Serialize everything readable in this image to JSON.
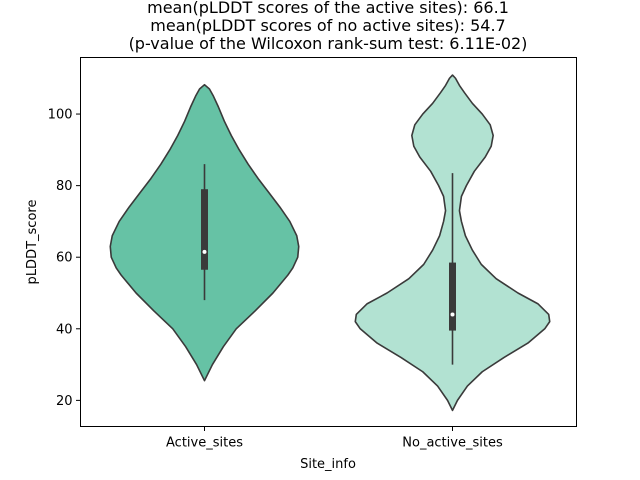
{
  "chart_data": {
    "type": "violin",
    "title_lines": [
      "mean(pLDDT scores of the active sites): 66.1",
      "mean(pLDDT scores of no active sites): 54.7",
      "(p-value of the Wilcoxon rank-sum test: 6.11E-02)"
    ],
    "xlabel": "Site_info",
    "ylabel": "pLDDT_score",
    "ylim": [
      12.7,
      115.8
    ],
    "yticks": [
      20,
      40,
      60,
      80,
      100
    ],
    "grid": false,
    "categories": [
      "Active_sites",
      "No_active_sites"
    ],
    "series": [
      {
        "category": "Active_sites",
        "color": "#66c2a5",
        "range": [
          25.5,
          108.2
        ],
        "whisker": [
          48,
          86
        ],
        "quartiles": [
          56.5,
          61.5,
          79
        ],
        "density": [
          [
            25.5,
            0
          ],
          [
            30,
            0.08
          ],
          [
            35,
            0.19
          ],
          [
            40,
            0.32
          ],
          [
            45,
            0.51
          ],
          [
            50,
            0.69
          ],
          [
            55,
            0.84
          ],
          [
            57,
            0.89
          ],
          [
            60,
            0.94
          ],
          [
            63,
            0.95
          ],
          [
            66,
            0.93
          ],
          [
            70,
            0.86
          ],
          [
            74,
            0.76
          ],
          [
            78,
            0.65
          ],
          [
            82,
            0.54
          ],
          [
            86,
            0.44
          ],
          [
            90,
            0.35
          ],
          [
            94,
            0.27
          ],
          [
            98,
            0.2
          ],
          [
            102,
            0.14
          ],
          [
            105,
            0.09
          ],
          [
            107,
            0.05
          ],
          [
            108.2,
            0
          ]
        ]
      },
      {
        "category": "No_active_sites",
        "color": "#b2e2d2",
        "range": [
          17.2,
          110.9
        ],
        "whisker": [
          30,
          83.5
        ],
        "quartiles": [
          39.5,
          44,
          58.5
        ],
        "density": [
          [
            17.2,
            0
          ],
          [
            20,
            0.05
          ],
          [
            24,
            0.15
          ],
          [
            28,
            0.3
          ],
          [
            32,
            0.52
          ],
          [
            36,
            0.76
          ],
          [
            40,
            0.93
          ],
          [
            42,
            0.98
          ],
          [
            44,
            0.97
          ],
          [
            47,
            0.86
          ],
          [
            50,
            0.66
          ],
          [
            54,
            0.44
          ],
          [
            58,
            0.29
          ],
          [
            62,
            0.2
          ],
          [
            66,
            0.13
          ],
          [
            70,
            0.09
          ],
          [
            73,
            0.07
          ],
          [
            77,
            0.09
          ],
          [
            80,
            0.14
          ],
          [
            84,
            0.22
          ],
          [
            88,
            0.33
          ],
          [
            91,
            0.39
          ],
          [
            94,
            0.41
          ],
          [
            97,
            0.38
          ],
          [
            100,
            0.3
          ],
          [
            103,
            0.2
          ],
          [
            106,
            0.12
          ],
          [
            108,
            0.07
          ],
          [
            110,
            0.03
          ],
          [
            110.9,
            0
          ]
        ]
      }
    ]
  }
}
